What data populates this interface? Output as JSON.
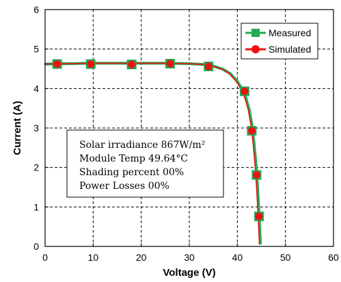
{
  "chart_data": {
    "type": "line",
    "title": "",
    "xlabel": "Voltage (V)",
    "ylabel": "Current (A)",
    "xlim": [
      0,
      60
    ],
    "ylim": [
      0,
      6
    ],
    "xticks": [
      "0",
      "10",
      "20",
      "30",
      "40",
      "50",
      "60"
    ],
    "yticks": [
      "0",
      "1",
      "2",
      "3",
      "4",
      "5",
      "6"
    ],
    "grid": true,
    "legend_position": "top-right",
    "series": [
      {
        "name": "Measured",
        "color": "#22aa55",
        "marker": "square",
        "x": [
          2.5,
          9.5,
          18,
          26,
          34,
          41.5,
          43,
          44,
          44.5
        ],
        "y": [
          4.62,
          4.62,
          4.61,
          4.63,
          4.56,
          3.93,
          2.93,
          1.81,
          0.76
        ]
      },
      {
        "name": "Simulated",
        "color": "#ee1111",
        "marker": "circle",
        "x": [
          2.5,
          9.5,
          18,
          26,
          34,
          41.5,
          43,
          44,
          44.5
        ],
        "y": [
          4.62,
          4.62,
          4.61,
          4.63,
          4.56,
          3.93,
          2.93,
          1.81,
          0.76
        ]
      }
    ],
    "curve": {
      "x": [
        0,
        5,
        10,
        15,
        20,
        25,
        30,
        33,
        35,
        37,
        38.5,
        40,
        41,
        41.8,
        42.5,
        43,
        43.5,
        44,
        44.3,
        44.6,
        44.8
      ],
      "y": [
        4.62,
        4.63,
        4.64,
        4.64,
        4.64,
        4.64,
        4.63,
        4.61,
        4.57,
        4.49,
        4.38,
        4.18,
        3.98,
        3.75,
        3.45,
        3.1,
        2.6,
        1.9,
        1.3,
        0.6,
        0.05
      ]
    },
    "annotation": {
      "lines": [
        "Solar irradiance 867W/m²",
        "Module Temp 49.64°C",
        "Shading percent 00%",
        "Power Losses 00%"
      ]
    }
  }
}
